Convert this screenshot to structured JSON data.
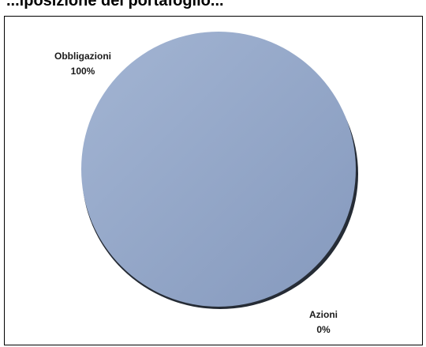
{
  "title": "...iposizione del portafoglio...",
  "chart_data": {
    "type": "pie",
    "title": "",
    "slices": [
      {
        "label": "Obbligazioni",
        "value": 100,
        "percent_label": "100%",
        "color": "#8fa3c4"
      },
      {
        "label": "Azioni",
        "value": 0,
        "percent_label": "0%",
        "color": "#c0504d"
      }
    ],
    "style": "3d-shadow"
  }
}
